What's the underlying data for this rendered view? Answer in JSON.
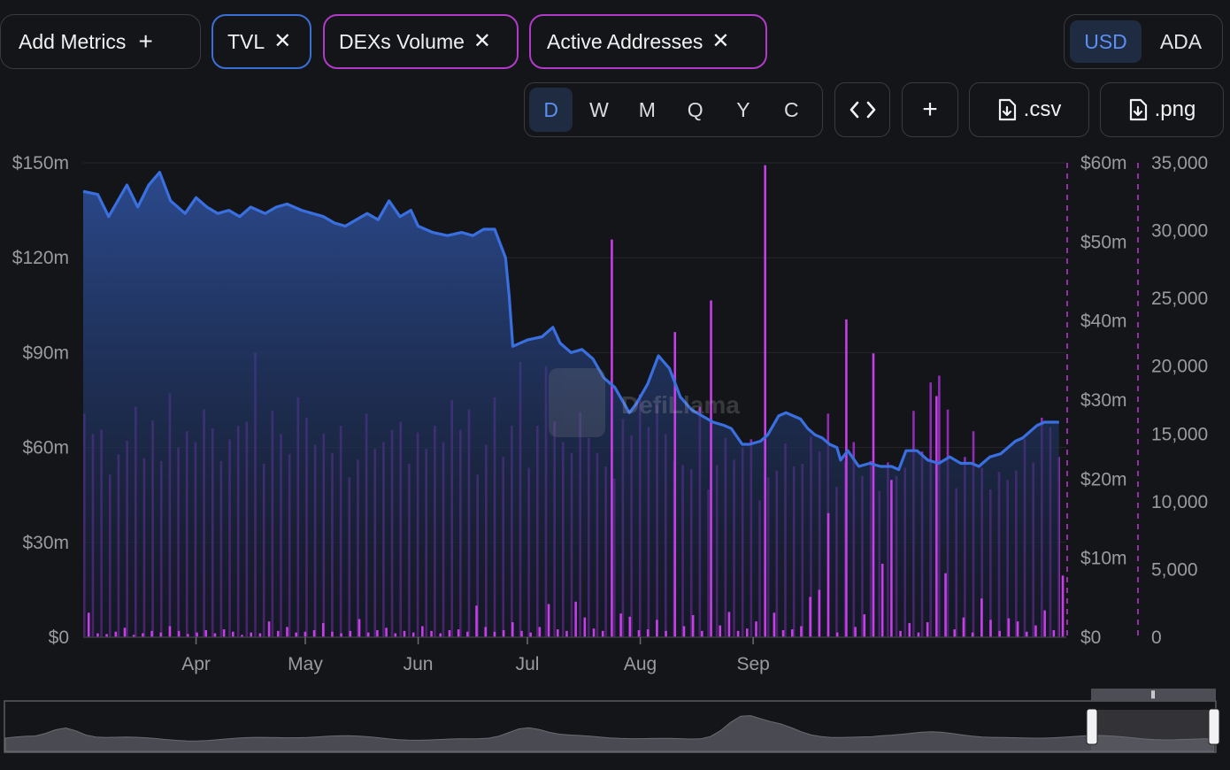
{
  "toolbar": {
    "add_metrics_label": "Add Metrics",
    "chips": [
      {
        "label": "TVL",
        "color": "#3b6fd8"
      },
      {
        "label": "DEXs Volume",
        "color": "#b13ac9"
      },
      {
        "label": "Active Addresses",
        "color": "#b13ac9"
      }
    ],
    "close_icon": "close-icon",
    "currency": {
      "options": [
        "USD",
        "ADA"
      ],
      "selected": "USD"
    },
    "periods": {
      "options": [
        "D",
        "W",
        "M",
        "Q",
        "Y",
        "C"
      ],
      "selected": "D"
    },
    "embed_icon": "code-icon",
    "add_icon": "plus-icon",
    "csv_label": ".csv",
    "png_label": ".png",
    "download_icon": "file-download-icon"
  },
  "watermark": "DefiLlama",
  "chart_data": {
    "type": "line",
    "x_labels": [
      "Apr",
      "May",
      "Jun",
      "Jul",
      "Aug",
      "Sep"
    ],
    "x_range": [
      "2024-03-01",
      "2024-09-27"
    ],
    "axes": {
      "left": {
        "ticks": [
          "$0",
          "$30m",
          "$60m",
          "$90m",
          "$120m",
          "$150m"
        ],
        "max": 150
      },
      "right_volume": {
        "ticks": [
          "$0",
          "$10m",
          "$20m",
          "$30m",
          "$40m",
          "$50m",
          "$60m"
        ],
        "max": 60
      },
      "right_addresses": {
        "ticks": [
          "0",
          "5,000",
          "10,000",
          "15,000",
          "20,000",
          "25,000",
          "30,000",
          "35,000"
        ],
        "max": 35000
      }
    },
    "grid": true,
    "series": [
      {
        "name": "TVL",
        "type": "area",
        "axis": "left",
        "unit": "$m",
        "color": "#3b6fd8",
        "points": [
          [
            0,
            141
          ],
          [
            4,
            140
          ],
          [
            7,
            133
          ],
          [
            9,
            137
          ],
          [
            12,
            143
          ],
          [
            15,
            136
          ],
          [
            18,
            143
          ],
          [
            21,
            147
          ],
          [
            24,
            138
          ],
          [
            28,
            134
          ],
          [
            31,
            139
          ],
          [
            34,
            136
          ],
          [
            37,
            134
          ],
          [
            40,
            135
          ],
          [
            43,
            133
          ],
          [
            46,
            136
          ],
          [
            50,
            134
          ],
          [
            53,
            136
          ],
          [
            56,
            137
          ],
          [
            60,
            135
          ],
          [
            63,
            134
          ],
          [
            66,
            133
          ],
          [
            69,
            131
          ],
          [
            72,
            130
          ],
          [
            75,
            132
          ],
          [
            78,
            134
          ],
          [
            81,
            132
          ],
          [
            84,
            138
          ],
          [
            87,
            133
          ],
          [
            90,
            135
          ],
          [
            92,
            130
          ],
          [
            96,
            128
          ],
          [
            100,
            127
          ],
          [
            104,
            128
          ],
          [
            107,
            127
          ],
          [
            110,
            129
          ],
          [
            113,
            129
          ],
          [
            116,
            120
          ],
          [
            117,
            108
          ],
          [
            118,
            92
          ],
          [
            120,
            93
          ],
          [
            122,
            94
          ],
          [
            126,
            95
          ],
          [
            129,
            98
          ],
          [
            131,
            93
          ],
          [
            134,
            90
          ],
          [
            137,
            91
          ],
          [
            140,
            88
          ],
          [
            143,
            82
          ],
          [
            146,
            79
          ],
          [
            150,
            71
          ],
          [
            152,
            74
          ],
          [
            155,
            80
          ],
          [
            157,
            86
          ],
          [
            158,
            89
          ],
          [
            161,
            85
          ],
          [
            164,
            76
          ],
          [
            167,
            72
          ],
          [
            170,
            70
          ],
          [
            173,
            68
          ],
          [
            176,
            67
          ],
          [
            178,
            66
          ],
          [
            181,
            61
          ],
          [
            183,
            61
          ],
          [
            186,
            62
          ],
          [
            188,
            64
          ],
          [
            191,
            70
          ],
          [
            193,
            71
          ],
          [
            195,
            70
          ],
          [
            197,
            69
          ],
          [
            199,
            66
          ],
          [
            201,
            64
          ],
          [
            203,
            63
          ],
          [
            205,
            61
          ],
          [
            207,
            60
          ],
          [
            208,
            56
          ],
          [
            210,
            59
          ],
          [
            213,
            54
          ],
          [
            216,
            55
          ],
          [
            219,
            54
          ],
          [
            222,
            54
          ],
          [
            224,
            53
          ],
          [
            226,
            59
          ],
          [
            229,
            59
          ],
          [
            232,
            56
          ],
          [
            235,
            55
          ],
          [
            238,
            57
          ],
          [
            241,
            55
          ],
          [
            244,
            55
          ],
          [
            246,
            54
          ],
          [
            249,
            57
          ],
          [
            252,
            58
          ],
          [
            254,
            60
          ],
          [
            256,
            62
          ],
          [
            258,
            63
          ],
          [
            260,
            65
          ],
          [
            262,
            67
          ],
          [
            264,
            68
          ],
          [
            266,
            68
          ],
          [
            268,
            68
          ]
        ]
      },
      {
        "name": "DEXs Volume",
        "type": "bar",
        "axis": "right_volume",
        "unit": "$m",
        "color": "#a23ad2",
        "sample_values": [
          3.1,
          0.5,
          0.4,
          0.7,
          1.2,
          0.3,
          0.5,
          0.8,
          0.6,
          1.4,
          0.8,
          0.4,
          0.6,
          0.9,
          0.5,
          1.0,
          0.7,
          0.3,
          0.6,
          0.5,
          2.0,
          0.8,
          1.3,
          0.6,
          0.7,
          0.9,
          1.8,
          0.7,
          0.5,
          0.8,
          2.3,
          0.6,
          0.9,
          1.2,
          0.5,
          0.8,
          0.6,
          1.4,
          0.8,
          0.5,
          0.9,
          1.0,
          0.7,
          4.0,
          1.3,
          0.7,
          0.9,
          1.9,
          0.8,
          0.6,
          1.3,
          4.2,
          1.0,
          0.8,
          4.5,
          2.5,
          1.1,
          0.8,
          50.3,
          3.0,
          2.6,
          0.9,
          1.0,
          2.2,
          0.8,
          38.6,
          1.4,
          2.8,
          0.8,
          42.6,
          1.5,
          3.2,
          0.8,
          1.1,
          2.0,
          59.7,
          3.1,
          0.9,
          1.0,
          1.4,
          5.1,
          6.0,
          15.7,
          0.6,
          40.2,
          1.3,
          2.9,
          35.9,
          9.3,
          19.9,
          0.8,
          1.8,
          0.6,
          1.9,
          30.5,
          8.1,
          1.0,
          2.5,
          0.6,
          4.9,
          2.2,
          0.8,
          2.4,
          2.0,
          0.7,
          1.5,
          3.4,
          0.9,
          7.8
        ]
      },
      {
        "name": "Active Addresses",
        "type": "bar",
        "axis": "right_addresses",
        "unit": "count",
        "color": "#a23ad2",
        "sample_values": [
          16500,
          15000,
          15300,
          12000,
          13500,
          14500,
          17000,
          13200,
          16000,
          13000,
          18000,
          14000,
          15200,
          14400,
          16800,
          15400,
          13000,
          14600,
          15600,
          15900,
          21000,
          12800,
          16700,
          15000,
          13500,
          17700,
          16200,
          14200,
          15000,
          13600,
          15600,
          11800,
          13100,
          16500,
          13900,
          14400,
          15300,
          15900,
          12800,
          15100,
          13900,
          15600,
          14400,
          17500,
          15300,
          16800,
          12000,
          14200,
          17700,
          13300,
          15600,
          20300,
          12500,
          15600,
          20000,
          15900,
          14400,
          13600,
          16600,
          14700,
          13600,
          12600,
          11700,
          16100,
          14900,
          17900,
          15500,
          17100,
          15000,
          13000,
          12700,
          12400,
          17000,
          10900,
          12700,
          14700,
          13100,
          14000,
          14600,
          10100,
          11800,
          12300,
          14300,
          12600,
          12800,
          14800,
          13700,
          16500,
          11100,
          13000,
          14400,
          11900,
          13000,
          10800,
          12900,
          11900,
          12500,
          16700,
          13700,
          18800,
          19300,
          16800,
          11000,
          13300,
          15200,
          12500,
          10900,
          12200,
          11600,
          12300,
          14600,
          12900,
          16200,
          15500,
          13300
        ]
      }
    ]
  }
}
